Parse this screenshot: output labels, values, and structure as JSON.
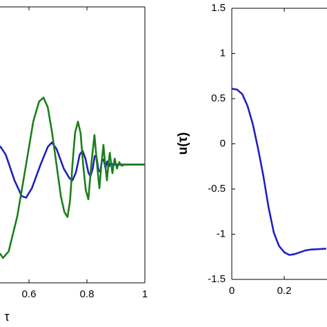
{
  "chart_data": [
    {
      "type": "line",
      "xlabel": "τ",
      "xlim": [
        0.5,
        1
      ],
      "ylim": [
        -3,
        4
      ],
      "xticks": [
        0.6,
        0.8,
        1
      ],
      "series": [
        {
          "color": "#1f1fbf",
          "x": [
            0.5,
            0.52,
            0.55,
            0.575,
            0.59,
            0.61,
            0.64,
            0.665,
            0.679,
            0.695,
            0.72,
            0.74,
            0.75,
            0.762,
            0.775,
            0.785,
            0.795,
            0.805,
            0.812,
            0.82,
            0.827,
            0.833,
            0.84,
            0.846,
            0.852,
            0.858,
            0.864,
            0.87,
            0.876,
            0.882,
            0.89,
            1.0
          ],
          "values": [
            0.47,
            0.25,
            -0.4,
            -0.8,
            -0.84,
            -0.6,
            0,
            0.45,
            0.56,
            0.4,
            -0.1,
            -0.35,
            -0.4,
            -0.2,
            0.25,
            0.35,
            0.15,
            -0.2,
            -0.3,
            -0.1,
            0.22,
            0.2,
            -0.15,
            -0.18,
            0.1,
            0.13,
            -0.09,
            0.08,
            -0.05,
            0.04,
            0,
            0
          ]
        },
        {
          "color": "#1a7f1a",
          "x": [
            0.5,
            0.51,
            0.53,
            0.56,
            0.59,
            0.615,
            0.635,
            0.65,
            0.665,
            0.68,
            0.695,
            0.71,
            0.722,
            0.733,
            0.742,
            0.75,
            0.759,
            0.769,
            0.778,
            0.787,
            0.796,
            0.805,
            0.815,
            0.826,
            0.835,
            0.843,
            0.85,
            0.857,
            0.863,
            0.869,
            0.874,
            0.879,
            0.884,
            0.888,
            0.892,
            0.896,
            0.9,
            0.904,
            0.908,
            0.912,
            0.916,
            0.92,
            0.93,
            1.0
          ],
          "values": [
            -2.25,
            -2.37,
            -2.2,
            -1.3,
            0,
            1.1,
            1.6,
            1.7,
            1.45,
            0.8,
            0,
            -0.8,
            -1.2,
            -1.33,
            -0.9,
            0,
            0.8,
            1.09,
            0.8,
            0,
            -0.65,
            -0.88,
            0,
            0.75,
            0,
            -0.6,
            0,
            0.5,
            0,
            -0.4,
            0,
            0.3,
            0,
            -0.22,
            0,
            0.15,
            0,
            -0.1,
            0,
            0.06,
            0,
            -0.03,
            0,
            0
          ]
        }
      ]
    },
    {
      "type": "line",
      "ylabel": "u(τ)",
      "xlim": [
        0,
        0.363
      ],
      "ylim": [
        -1.5,
        1.5
      ],
      "xticks": [
        0,
        0.2
      ],
      "yticks": [
        1.5,
        1,
        0.5,
        0,
        -0.5,
        -1,
        -1.5
      ],
      "series": [
        {
          "color": "#1f1fbf",
          "x": [
            0,
            0.02,
            0.04,
            0.06,
            0.08,
            0.1,
            0.12,
            0.14,
            0.16,
            0.18,
            0.2,
            0.22,
            0.24,
            0.26,
            0.28,
            0.3,
            0.36
          ],
          "values": [
            0.61,
            0.6,
            0.55,
            0.42,
            0.22,
            -0.05,
            -0.35,
            -0.7,
            -0.98,
            -1.13,
            -1.2,
            -1.23,
            -1.22,
            -1.2,
            -1.18,
            -1.17,
            -1.16
          ]
        }
      ]
    }
  ]
}
